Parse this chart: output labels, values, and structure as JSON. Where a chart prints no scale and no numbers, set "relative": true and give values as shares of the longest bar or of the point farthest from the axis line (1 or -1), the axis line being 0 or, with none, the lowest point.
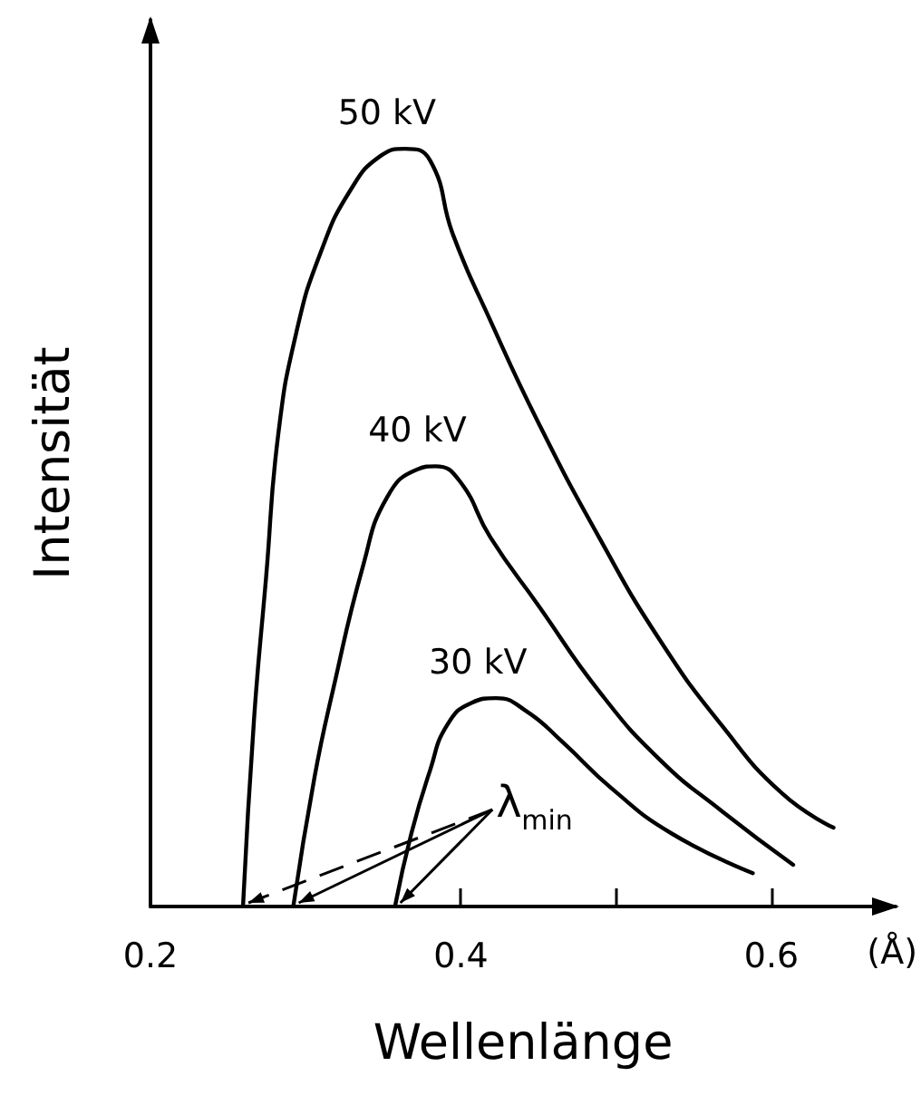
{
  "chart_data": {
    "type": "line",
    "relative": true,
    "xlabel": "Wellenlänge",
    "ylabel": "Intensität",
    "xlim": [
      0.2,
      0.68
    ],
    "xticks": [
      0.2,
      0.4,
      {
        "value": 0.5,
        "label": null
      },
      0.6
    ],
    "grid": false,
    "legend": false,
    "marker": "none",
    "line_style": "solid",
    "annotations": [
      "(Å)",
      "λ$_{min}$"
    ],
    "series": [
      {
        "name": "50 kV",
        "color": "#000000",
        "x": [
          0.2596,
          0.2667,
          0.2745,
          0.2823,
          0.294,
          0.3096,
          0.329,
          0.3485,
          0.364,
          0.38,
          0.395,
          0.419,
          0.45,
          0.489,
          0.528,
          0.568,
          0.607,
          0.64
        ],
        "values": [
          0,
          0.247,
          0.435,
          0.623,
          0.758,
          0.863,
          0.946,
          0.991,
          1.0,
          0.985,
          0.886,
          0.773,
          0.638,
          0.487,
          0.352,
          0.239,
          0.149,
          0.104
        ]
      },
      {
        "name": "40 kV",
        "color": "#000000",
        "x": [
          0.292,
          0.3057,
          0.3174,
          0.337,
          0.3524,
          0.372,
          0.3836,
          0.399,
          0.419,
          0.45,
          0.489,
          0.528,
          0.568,
          0.614
        ],
        "values": [
          0,
          0.171,
          0.284,
          0.45,
          0.54,
          0.577,
          0.581,
          0.562,
          0.487,
          0.397,
          0.284,
          0.194,
          0.126,
          0.055
        ]
      },
      {
        "name": "30 kV",
        "color": "#000000",
        "x": [
          0.3575,
          0.368,
          0.38,
          0.391,
          0.407,
          0.4226,
          0.442,
          0.4655,
          0.497,
          0.536,
          0.588
        ],
        "values": [
          0,
          0.096,
          0.179,
          0.239,
          0.269,
          0.275,
          0.258,
          0.217,
          0.156,
          0.096,
          0.044
        ]
      }
    ]
  }
}
